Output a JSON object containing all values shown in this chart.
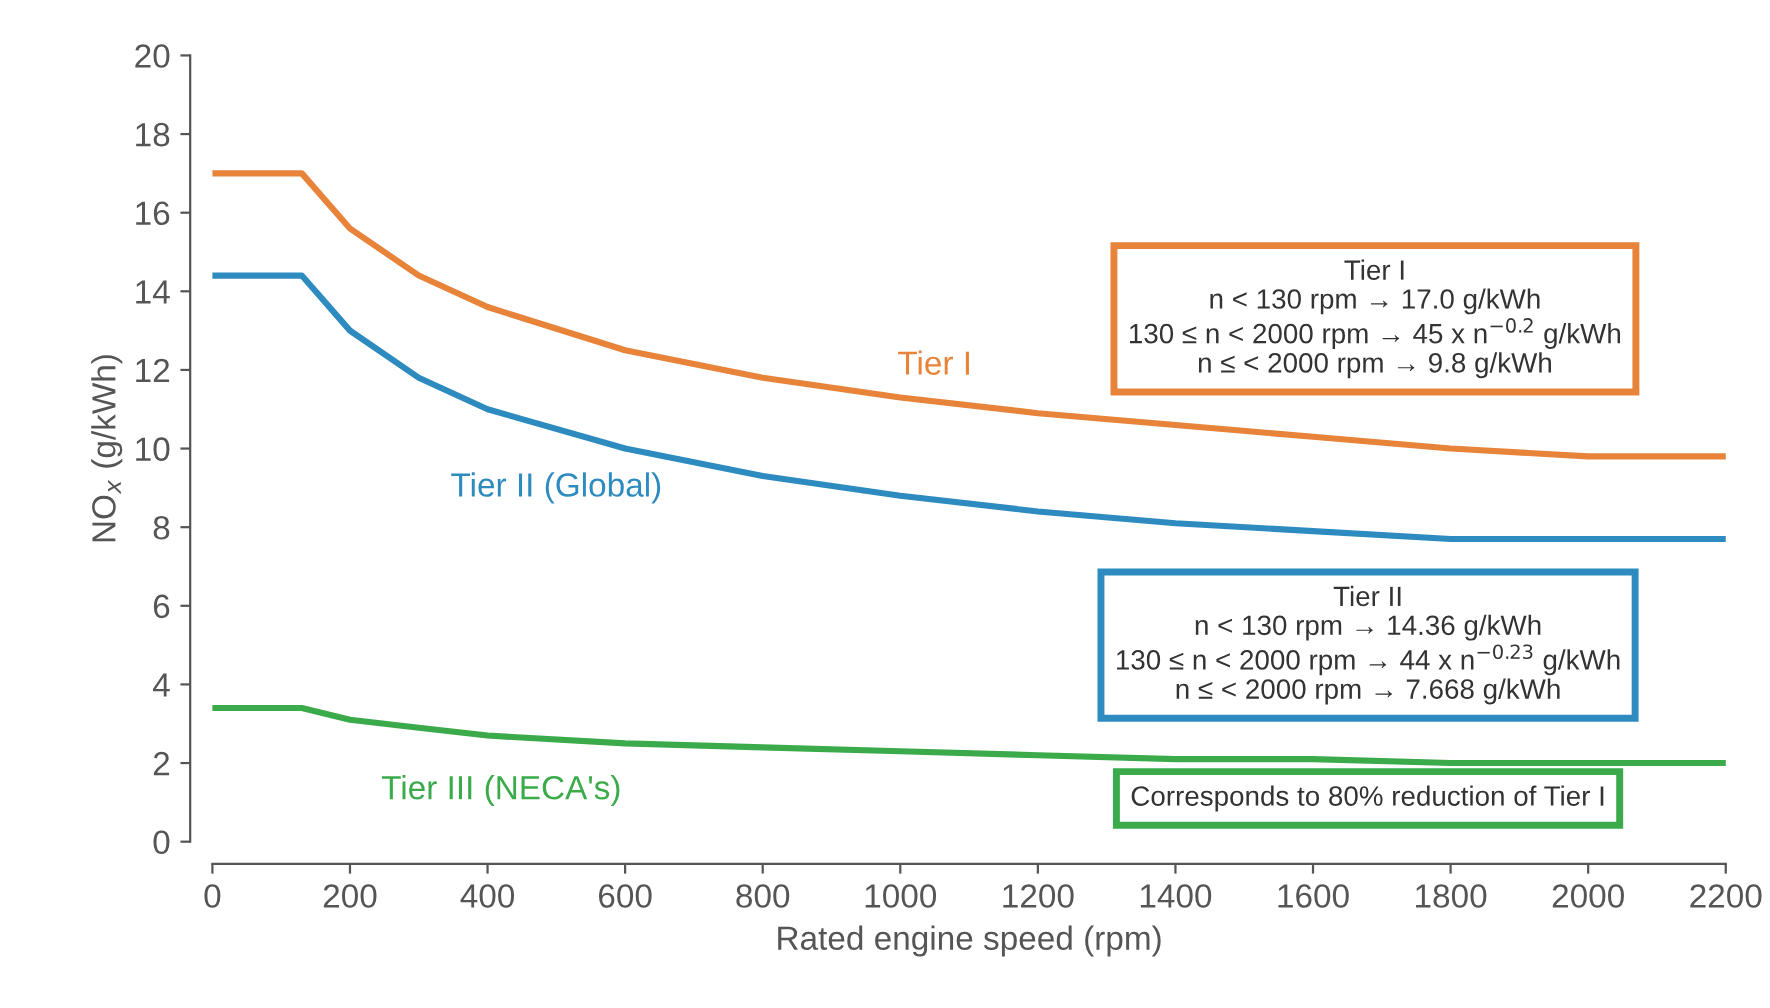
{
  "chart_data": {
    "type": "line",
    "xlabel": "Rated engine speed (rpm)",
    "ylabel": "NO$_{x}$ (g/kWh)",
    "x": [
      0,
      130,
      200,
      300,
      400,
      600,
      800,
      1000,
      1200,
      1400,
      1600,
      1800,
      2000,
      2200
    ],
    "series": [
      {
        "name": "Tier I",
        "color": "#e8833a",
        "values": [
          17.0,
          17.0,
          15.6,
          14.4,
          13.6,
          12.5,
          11.8,
          11.3,
          10.9,
          10.6,
          10.3,
          10.0,
          9.8,
          9.8
        ]
      },
      {
        "name": "Tier II (Global)",
        "color": "#2e8bc0",
        "values": [
          14.4,
          14.4,
          13.0,
          11.8,
          11.0,
          10.0,
          9.3,
          8.8,
          8.4,
          8.1,
          7.9,
          7.7,
          7.7,
          7.7
        ]
      },
      {
        "name": "Tier III (NECA's)",
        "color": "#3aaa4a",
        "values": [
          3.4,
          3.4,
          3.1,
          2.9,
          2.7,
          2.5,
          2.4,
          2.3,
          2.2,
          2.1,
          2.1,
          2.0,
          2.0,
          2.0
        ]
      }
    ],
    "annotations": [
      "Tier I\nn < 130 rpm → 17.0 g/kWh\n130 ≤ n < 2000 rpm → 45 x n$^{−0.2}$ g/kWh\nn ≤ < 2000 rpm → 9.8 g/kWh",
      "Tier II\nn < 130 rpm → 14.36 g/kWh\n130 ≤ n < 2000 rpm → 44 x n$^{−0.23}$ g/kWh\nn ≤ < 2000 rpm → 7.668 g/kWh",
      "Corresponds to 80% reduction of Tier I"
    ],
    "xlim": [
      0,
      2200
    ],
    "ylim": [
      0,
      20
    ],
    "xticks": [
      0,
      200,
      400,
      600,
      800,
      1000,
      1200,
      1400,
      1600,
      1800,
      2000,
      2200
    ],
    "yticks": [
      0,
      2,
      4,
      6,
      8,
      10,
      12,
      14,
      16,
      18,
      20
    ],
    "grid": false,
    "legend": false,
    "marker": "none",
    "line_style": "solid"
  }
}
